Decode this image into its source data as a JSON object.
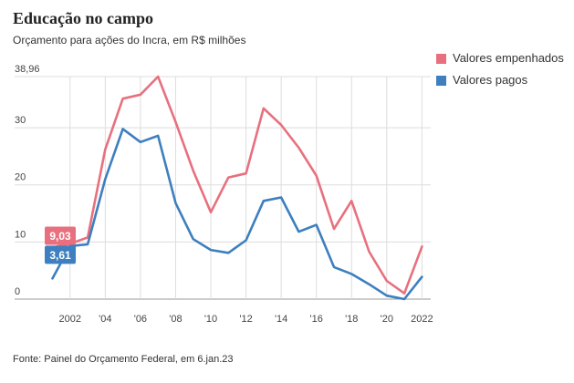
{
  "title": "Educação no campo",
  "subtitle": "Orçamento para ações do Incra, em R$ milhões",
  "source": "Fonte: Painel do Orçamento Federal, em 6.jan.23",
  "colors": {
    "empenhados": "#e8707e",
    "pagos": "#3d7fbf",
    "grid": "#dddddd",
    "axis": "#999999"
  },
  "chart_data": {
    "type": "line",
    "x": [
      2001,
      2002,
      2003,
      2004,
      2005,
      2006,
      2007,
      2008,
      2009,
      2010,
      2011,
      2012,
      2013,
      2014,
      2015,
      2016,
      2017,
      2018,
      2019,
      2020,
      2021,
      2022
    ],
    "series": [
      {
        "name": "Valores empenhados",
        "color": "#e8707e",
        "values": [
          9.03,
          9.7,
          10.8,
          26.2,
          35.1,
          35.8,
          38.96,
          31.0,
          22.5,
          15.2,
          21.3,
          22.0,
          33.4,
          30.5,
          26.5,
          21.6,
          12.3,
          17.2,
          8.3,
          3.2,
          1.0,
          9.2
        ]
      },
      {
        "name": "Valores pagos",
        "color": "#3d7fbf",
        "values": [
          3.61,
          9.3,
          9.6,
          21.0,
          29.8,
          27.5,
          28.6,
          16.8,
          10.5,
          8.6,
          8.1,
          10.3,
          17.2,
          17.8,
          11.8,
          13.0,
          5.6,
          4.4,
          2.6,
          0.6,
          0.0,
          3.9
        ]
      }
    ],
    "ylim": [
      0,
      38.96
    ],
    "y_ticks": [
      "0",
      "10",
      "20",
      "30",
      "38,96"
    ],
    "y_tick_values": [
      0,
      10,
      20,
      30,
      38.96
    ],
    "x_tick_labels": [
      "2002",
      "'04",
      "'06",
      "'08",
      "'10",
      "'12",
      "'14",
      "'16",
      "'18",
      "'20",
      "2022"
    ],
    "x_tick_values": [
      2002,
      2004,
      2006,
      2008,
      2010,
      2012,
      2014,
      2016,
      2018,
      2020,
      2022
    ],
    "xlabel": "",
    "ylabel": "",
    "annotations": [
      {
        "text": "9,03",
        "series": 0,
        "x": 2001
      },
      {
        "text": "3,61",
        "series": 1,
        "x": 2001
      }
    ],
    "legend_position": "top-right",
    "grid": true
  }
}
